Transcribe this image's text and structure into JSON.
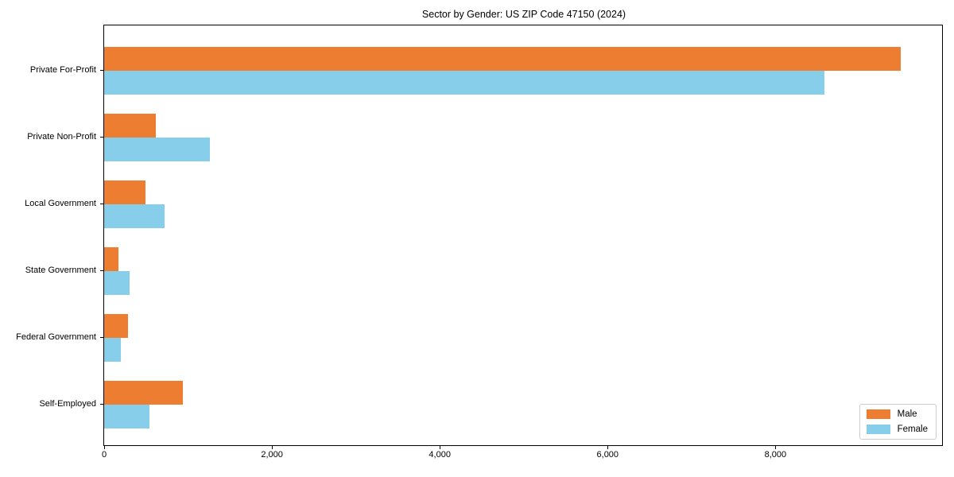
{
  "figure": {
    "title": "Sector by Gender: US ZIP Code 47150 (2024)"
  },
  "chart_data": {
    "type": "bar",
    "orientation": "horizontal",
    "title": "Sector by Gender: US ZIP Code 47150 (2024)",
    "categories": [
      "Private For-Profit",
      "Private Non-Profit",
      "Local Government",
      "State Government",
      "Federal Government",
      "Self-Employed"
    ],
    "series": [
      {
        "name": "Male",
        "color": "#ed7d31",
        "values": [
          9490,
          615,
          490,
          170,
          285,
          935
        ]
      },
      {
        "name": "Female",
        "color": "#87ceeb",
        "values": [
          8580,
          1260,
          720,
          300,
          200,
          540
        ]
      }
    ],
    "xlabel": "",
    "ylabel": "",
    "xlim": [
      0,
      9986
    ],
    "x_tick_values": [
      0,
      2000,
      4000,
      6000,
      8000
    ],
    "x_tick_labels": [
      "0",
      "2,000",
      "4,000",
      "6,000",
      "8,000"
    ],
    "grid": false,
    "legend": {
      "position": "lower right",
      "entries": [
        "Male",
        "Female"
      ]
    }
  },
  "colors": {
    "male": "#ed7d31",
    "female": "#87ceeb",
    "spine": "#000000",
    "legend_border": "#cccccc"
  }
}
